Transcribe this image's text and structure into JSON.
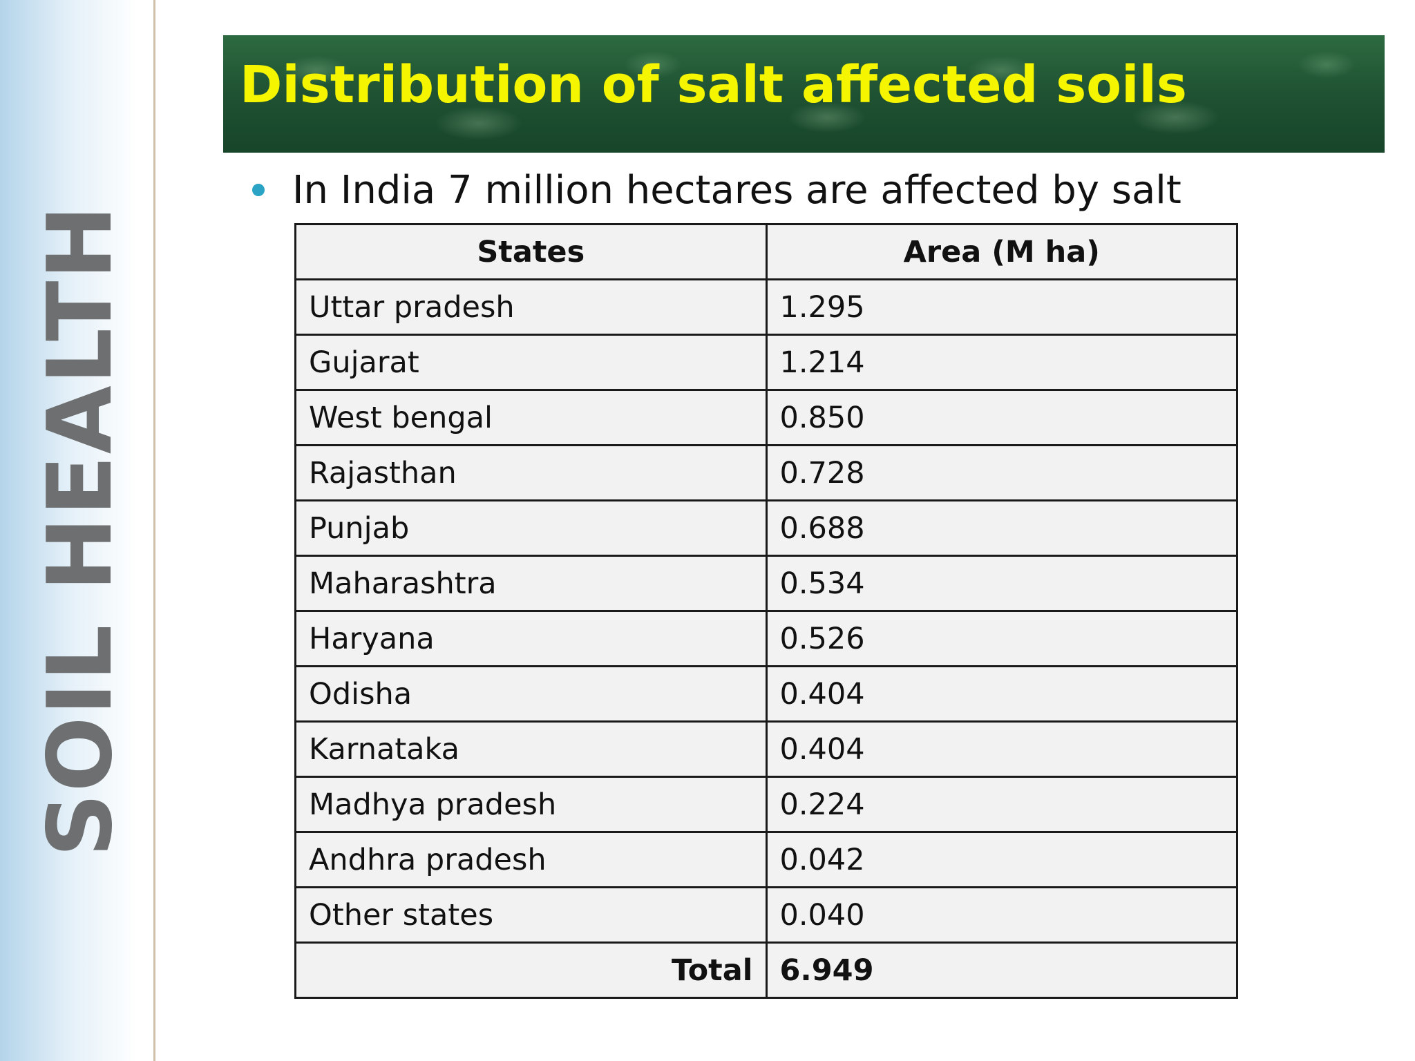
{
  "sidebar": {
    "title": "SOIL HEALTH"
  },
  "slide": {
    "title": "Distribution of salt affected soils",
    "bullet": "In India 7 million hectares are affected by salt"
  },
  "table": {
    "headers": [
      "States",
      "Area (M ha)"
    ],
    "rows": [
      [
        "Uttar pradesh",
        "1.295"
      ],
      [
        "Gujarat",
        "1.214"
      ],
      [
        "West bengal",
        "0.850"
      ],
      [
        "Rajasthan",
        "0.728"
      ],
      [
        "Punjab",
        "0.688"
      ],
      [
        "Maharashtra",
        "0.534"
      ],
      [
        "Haryana",
        "0.526"
      ],
      [
        "Odisha",
        "0.404"
      ],
      [
        "Karnataka",
        "0.404"
      ],
      [
        "Madhya pradesh",
        "0.224"
      ],
      [
        "Andhra pradesh",
        "0.042"
      ],
      [
        "Other states",
        "0.040"
      ]
    ],
    "total_label": "Total",
    "total_value": "6.949"
  },
  "colors": {
    "title_text": "#f5f500",
    "banner_green": "#1f5232",
    "bullet": "#2aa3c4",
    "sidebar_text": "#6d6f70"
  }
}
